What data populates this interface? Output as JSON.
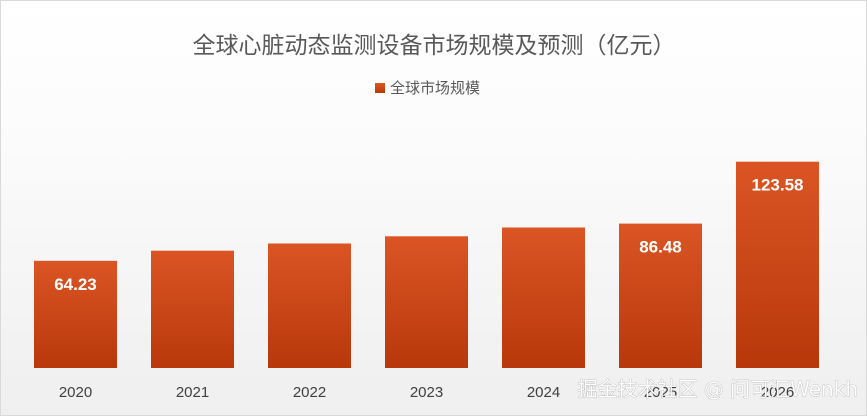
{
  "chart_data": {
    "type": "bar",
    "title": "全球心脏动态监测设备市场规模及预测（亿元）",
    "categories": [
      "2020",
      "2021",
      "2022",
      "2023",
      "2024",
      "2025",
      "2026"
    ],
    "series": [
      {
        "name": "全球市场规模",
        "values": [
          64.23,
          70.3,
          74.6,
          78.9,
          84.2,
          86.48,
          123.58
        ],
        "data_labels": [
          "64.23",
          "",
          "",
          "",
          "",
          "86.48",
          "123.58"
        ],
        "color": "#C8410F"
      }
    ],
    "legend_position": "top",
    "grid": false,
    "ylim": [
      0,
      130
    ]
  },
  "watermark": "掘金技术社区 @ 问可汇Wenkh",
  "colors": {
    "bar_top": "#DB5524",
    "bar_bottom": "#B8380B",
    "text": "#595959"
  }
}
